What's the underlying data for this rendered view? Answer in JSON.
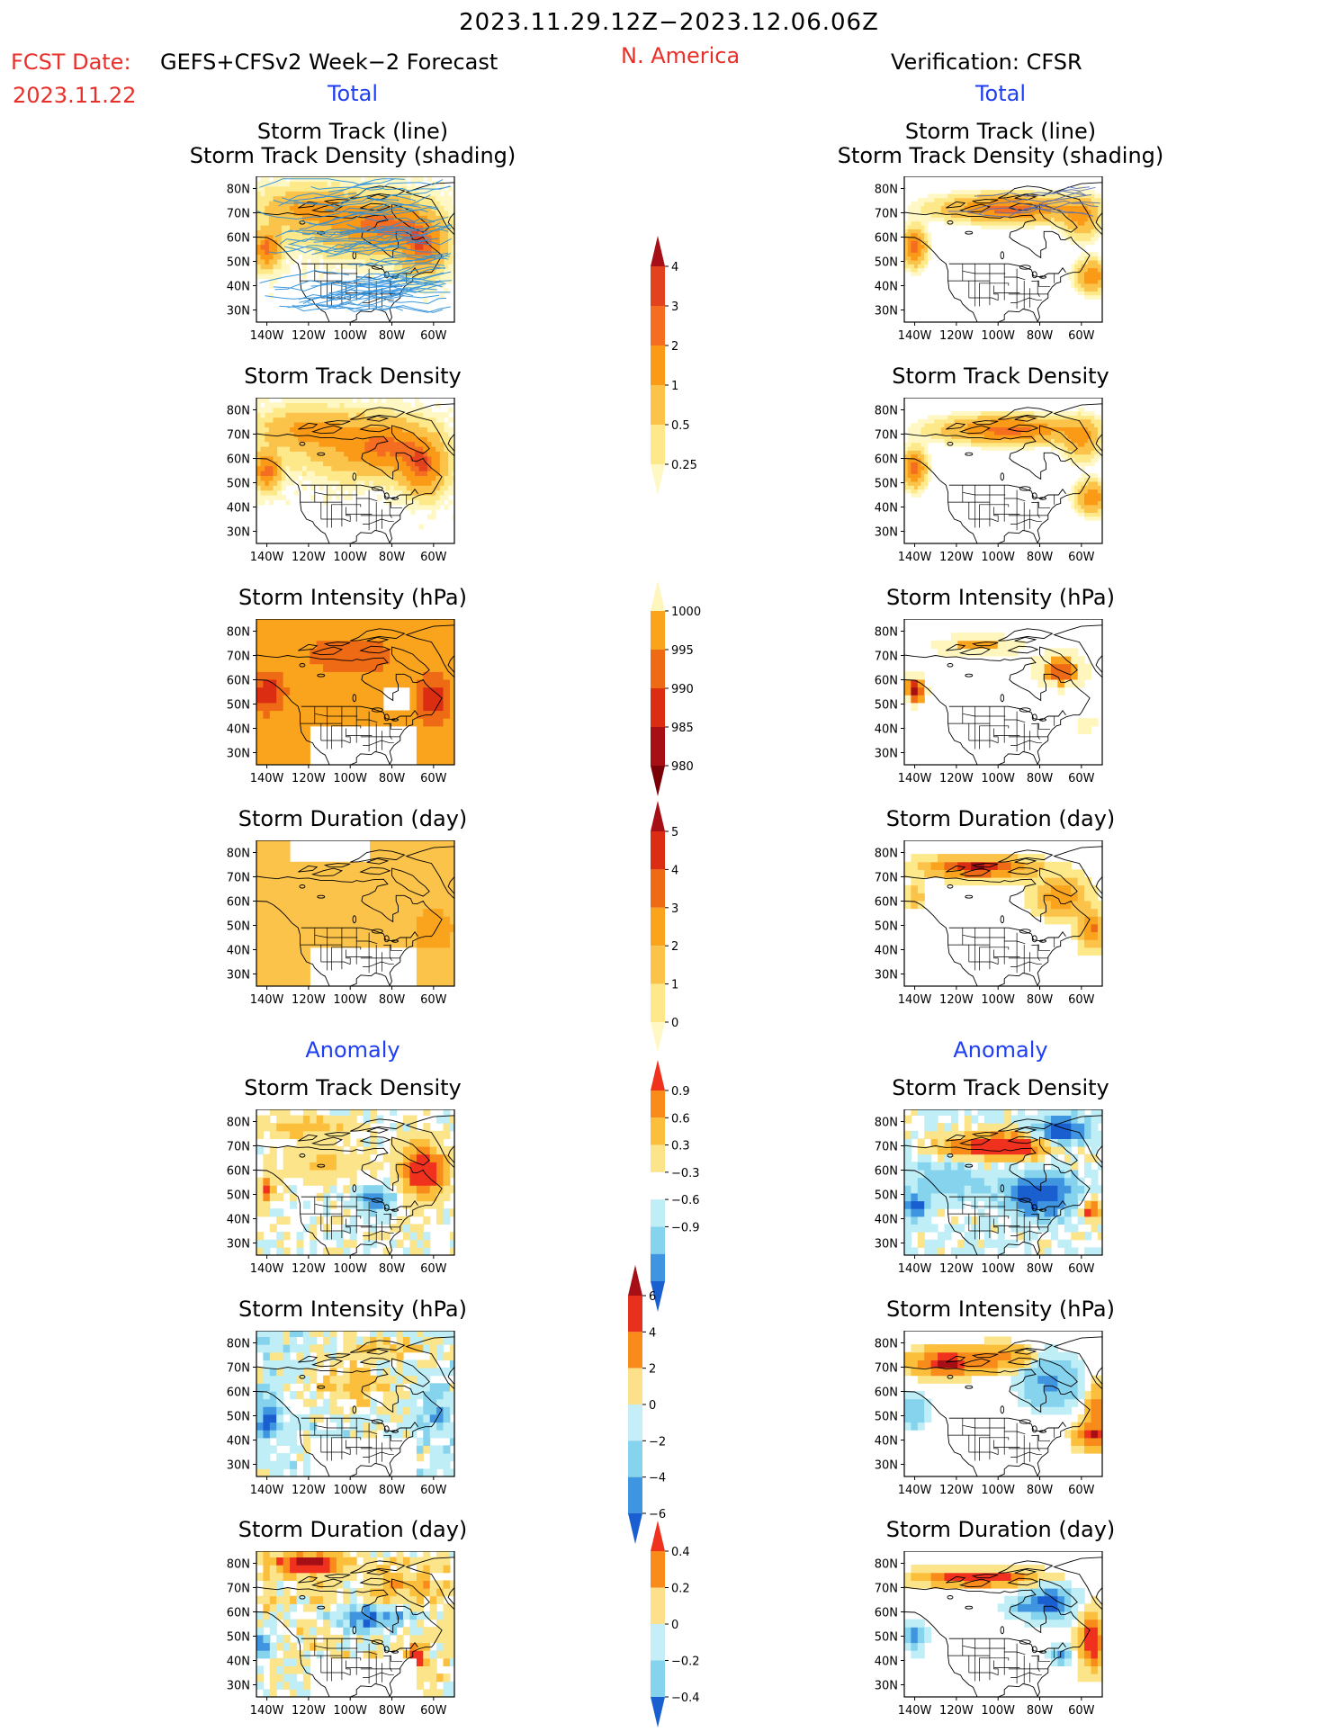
{
  "header": {
    "date_range": "2023.11.29.12Z−2023.12.06.06Z",
    "fcst_label": "FCST Date:",
    "fcst_product": "GEFS+CFSv2 Week−2 Forecast",
    "fcst_date": "2023.11.22",
    "region": "N. America",
    "verification": "Verification: CFSR"
  },
  "sections": {
    "total": "Total",
    "anomaly": "Anomaly"
  },
  "panel_titles": {
    "track_line": "Storm Track (line)",
    "track_density_shading": "Storm Track Density (shading)",
    "track_density": "Storm Track Density",
    "intensity": "Storm Intensity (hPa)",
    "duration": "Storm Duration (day)"
  },
  "map_axes": {
    "lat_ticks": [
      "80N",
      "70N",
      "60N",
      "50N",
      "40N",
      "30N"
    ],
    "lon_ticks": [
      "140W",
      "120W",
      "100W",
      "80W",
      "60W"
    ]
  },
  "colors": {
    "title_red": "#e8302a",
    "section_blue": "#1f3ef0",
    "track_line_forecast": "#2a8fdc",
    "track_line_obs": "#5a6fb0"
  },
  "chart_data": [
    {
      "id": "density_total_bar",
      "type": "heatmap",
      "name": "Storm Track Density (total) color scale",
      "levels": [
        "4",
        "3",
        "2",
        "1",
        "0.5",
        "0.25"
      ],
      "colors": [
        "#a50f15",
        "#e2421d",
        "#f46d20",
        "#fa9a16",
        "#fbc34a",
        "#fde98a",
        "#fff8c4"
      ]
    },
    {
      "id": "intensity_total_bar",
      "type": "heatmap",
      "name": "Storm Intensity (total) color scale",
      "levels": [
        "1000",
        "995",
        "990",
        "985",
        "980"
      ],
      "colors": [
        "#fff6bd",
        "#f9a41c",
        "#ee6a14",
        "#db2d12",
        "#a50f15",
        "#7a0008"
      ]
    },
    {
      "id": "duration_total_bar",
      "type": "heatmap",
      "name": "Storm Duration (total) color scale",
      "levels": [
        "5",
        "4",
        "3",
        "2",
        "1",
        "0"
      ],
      "colors": [
        "#a50f15",
        "#db2d12",
        "#ee6a14",
        "#f9a41c",
        "#fbc34a",
        "#fde98a",
        "#fff8c4"
      ]
    },
    {
      "id": "density_anom_bar",
      "type": "heatmap",
      "name": "Storm Track Density (anomaly) color scale",
      "levels": [
        "0.9",
        "0.6",
        "0.3",
        "−0.3",
        "−0.6",
        "−0.9"
      ],
      "colors": [
        "#f0311e",
        "#f98b1b",
        "#fcbf3c",
        "#fbe48a",
        "#ffffff",
        "#bfeef7",
        "#86d3ee",
        "#3f95df",
        "#1a5fd0"
      ]
    },
    {
      "id": "intensity_anom_bar",
      "type": "heatmap",
      "name": "Storm Intensity (anomaly) color scale",
      "levels": [
        "6",
        "4",
        "2",
        "0",
        "−2",
        "−4",
        "−6"
      ],
      "colors": [
        "#a50f15",
        "#e8301e",
        "#f98b1b",
        "#fce18a",
        "#c6eef8",
        "#86d3ee",
        "#3f95df",
        "#1a5fd0"
      ]
    },
    {
      "id": "duration_anom_bar",
      "type": "heatmap",
      "name": "Storm Duration (anomaly) color scale",
      "levels": [
        "0.4",
        "0.2",
        "0",
        "−0.2",
        "−0.4"
      ],
      "colors": [
        "#f0311e",
        "#f98b1b",
        "#fce18a",
        "#c6eef8",
        "#86d3ee",
        "#1a5fd0"
      ]
    }
  ]
}
